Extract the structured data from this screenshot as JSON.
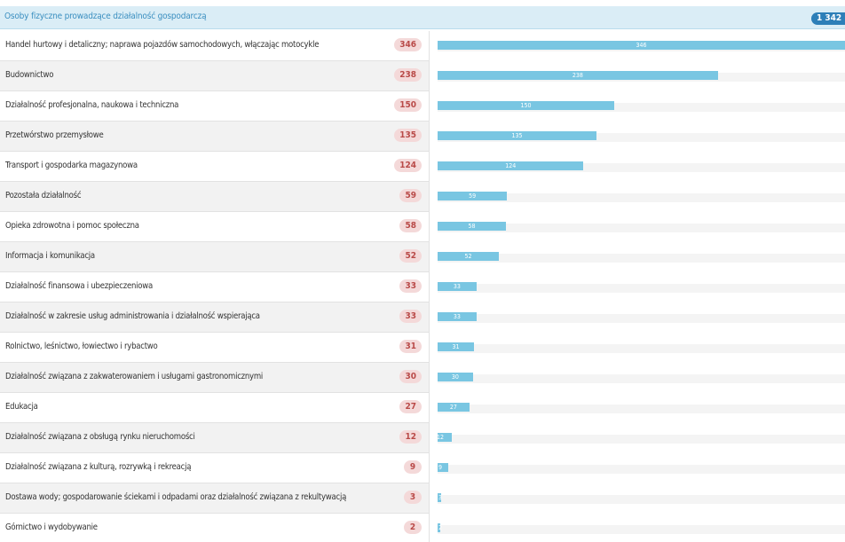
{
  "header": {
    "title": "Osoby fizyczne prowadzące działalność gospodarczą",
    "total": "1 342"
  },
  "colors": {
    "header_bg": "#daedf6",
    "header_text": "#3b8fc0",
    "total_badge": "#2d7fb8",
    "value_badge_bg": "#f4d9d9",
    "value_badge_text": "#b94a48",
    "bar": "#79c6e2",
    "track": "#f4f4f4"
  },
  "chart_data": {
    "type": "bar",
    "orientation": "horizontal",
    "max": 346,
    "categories": [
      "Handel hurtowy i detaliczny; naprawa pojazdów samochodowych, włączając motocykle",
      "Budownictwo",
      "Działalność profesjonalna, naukowa i techniczna",
      "Przetwórstwo przemysłowe",
      "Transport i gospodarka magazynowa",
      "Pozostała działalność",
      "Opieka zdrowotna i pomoc społeczna",
      "Informacja i komunikacja",
      "Działalność finansowa i ubezpieczeniowa",
      "Działalność w zakresie usług administrowania i działalność wspierająca",
      "Rolnictwo, leśnictwo, łowiectwo i rybactwo",
      "Działalność związana z zakwaterowaniem i usługami gastronomicznymi",
      "Edukacja",
      "Działalność związana z obsługą rynku nieruchomości",
      "Działalność związana z kulturą, rozrywką i rekreacją",
      "Dostawa wody; gospodarowanie ściekami i odpadami oraz działalność związana z rekultywacją",
      "Górnictwo i wydobywanie"
    ],
    "values": [
      346,
      238,
      150,
      135,
      124,
      59,
      58,
      52,
      33,
      33,
      31,
      30,
      27,
      12,
      9,
      3,
      2
    ]
  }
}
